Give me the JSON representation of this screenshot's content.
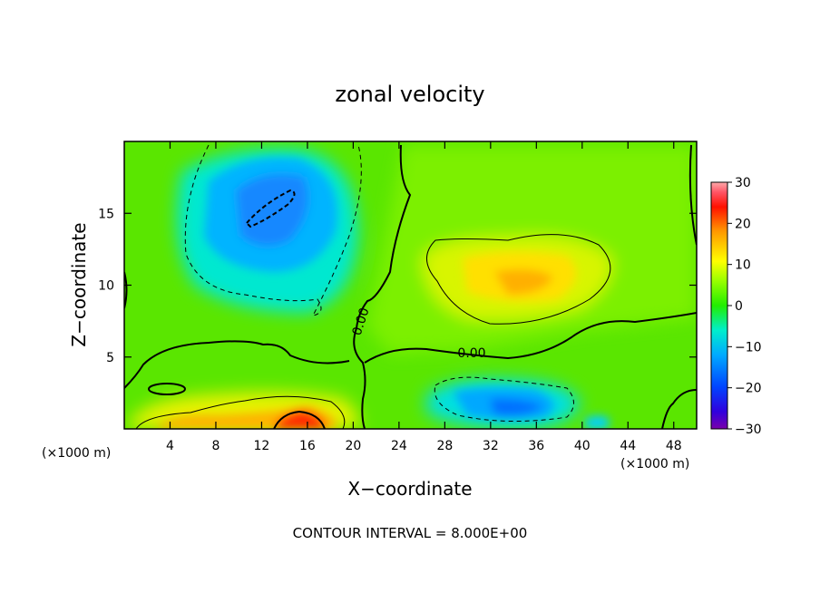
{
  "chart_data": {
    "type": "heatmap",
    "title": "zonal velocity",
    "xlabel": "X−coordinate",
    "ylabel": "Z−coordinate",
    "x_unit": "(×1000 m)",
    "x_unit_right": "(×1000 m)",
    "xlim": [
      0,
      50
    ],
    "ylim": [
      0,
      20
    ],
    "x_ticks": [
      4,
      8,
      12,
      16,
      20,
      24,
      28,
      32,
      36,
      40,
      44,
      48
    ],
    "y_ticks": [
      5,
      10,
      15
    ],
    "x_tick_labels": [
      "4",
      "8",
      "12",
      "16",
      "20",
      "24",
      "28",
      "32",
      "36",
      "40",
      "44",
      "48"
    ],
    "y_tick_labels": [
      "5",
      "10",
      "15"
    ],
    "colorbar": {
      "range": [
        -30,
        30
      ],
      "ticks": [
        30,
        20,
        10,
        0,
        -10,
        -20,
        -30
      ],
      "tick_labels": [
        "30",
        "20",
        "10",
        "0",
        "−10",
        "−20",
        "−30"
      ]
    },
    "contour_labels": [
      "0.00",
      "0.00"
    ],
    "footer": "CONTOUR INTERVAL = 8.000E+00",
    "features": [
      {
        "x": 13,
        "z": 15.5,
        "value": -14
      },
      {
        "x": 34,
        "z": 10.2,
        "value": 12
      },
      {
        "x": 34,
        "z": 1.5,
        "value": -13
      },
      {
        "x": 16,
        "z": 0.3,
        "value": 24
      }
    ]
  }
}
